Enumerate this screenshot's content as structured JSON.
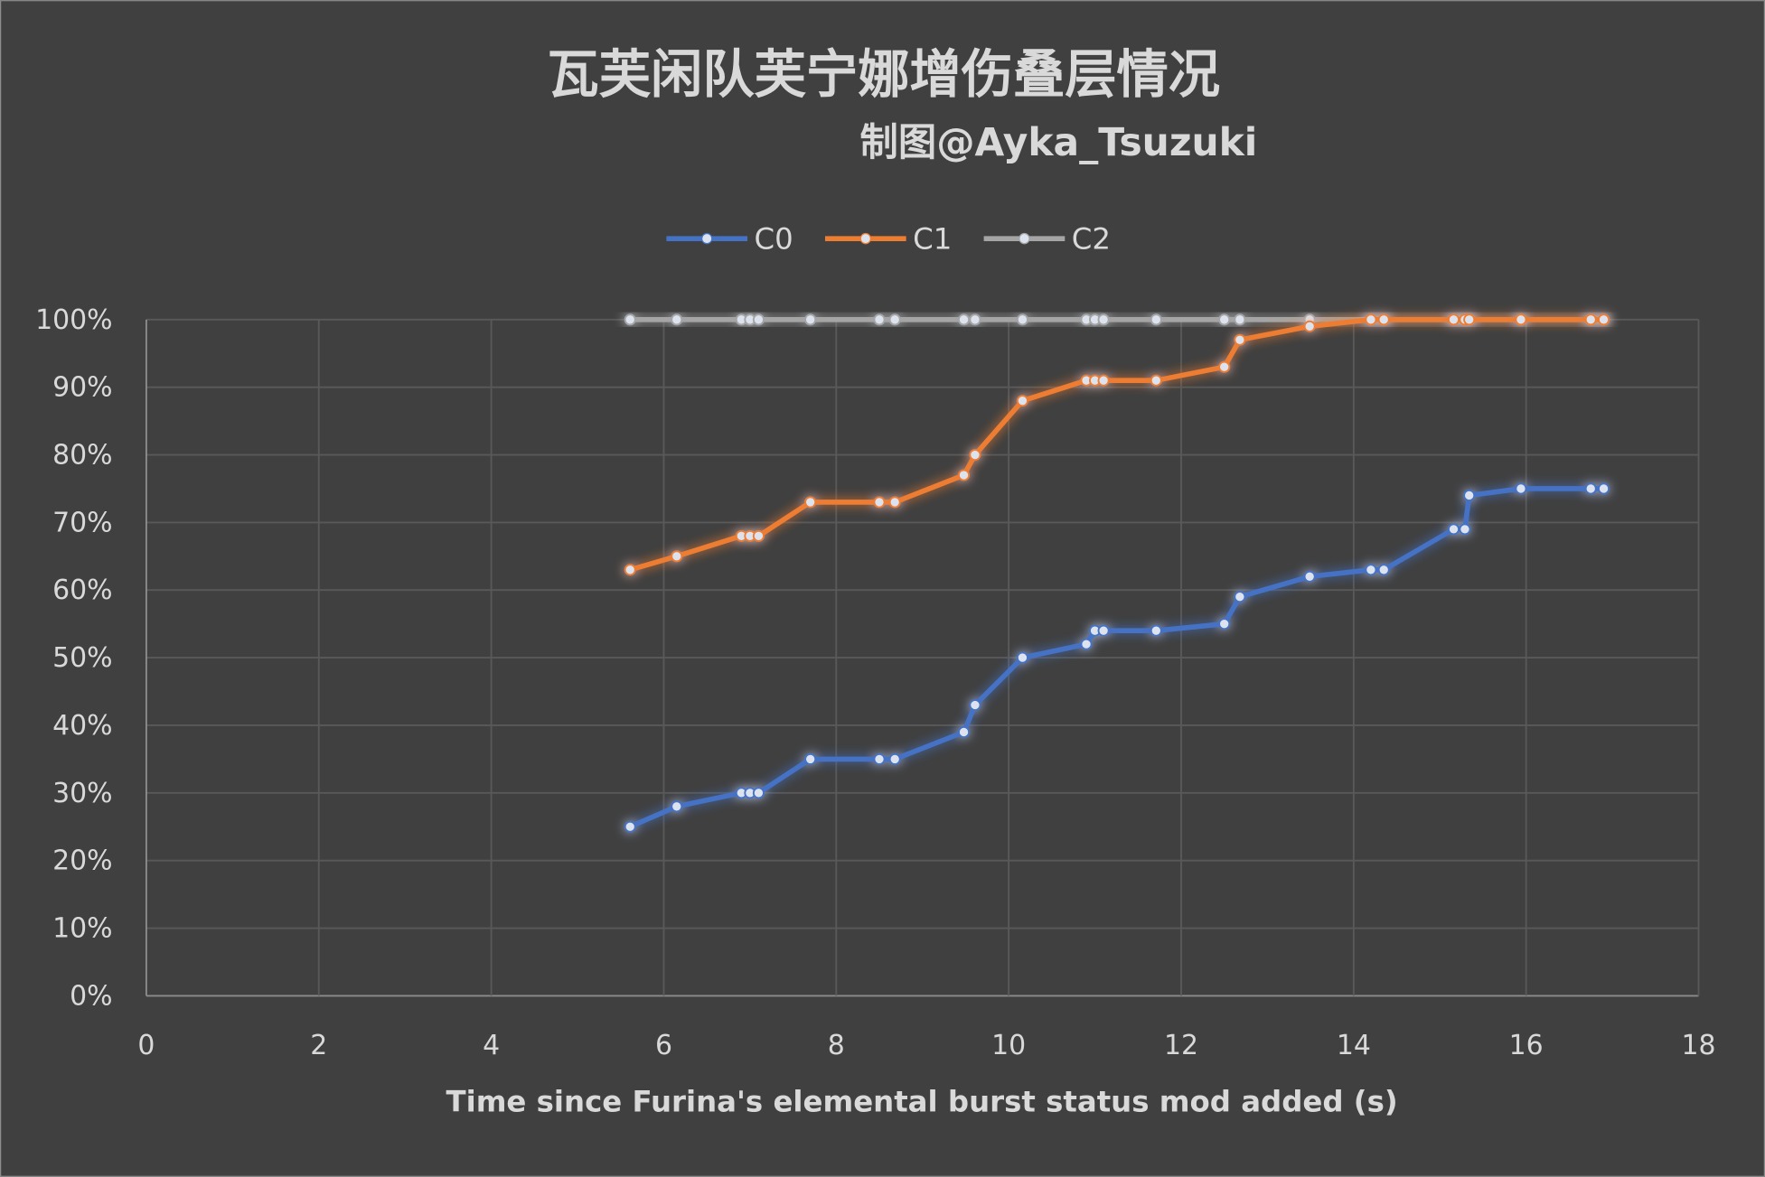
{
  "chart_data": {
    "type": "line",
    "title": "瓦芙闲队芙宁娜增伤叠层情况",
    "subtitle": "制图@Ayka_Tsuzuki",
    "xlabel": "Time since Furina's elemental burst status mod added (s)",
    "ylabel": "",
    "xlim": [
      0,
      18
    ],
    "ylim": [
      0,
      100
    ],
    "x_ticks": [
      "0",
      "2",
      "4",
      "6",
      "8",
      "10",
      "12",
      "14",
      "16",
      "18"
    ],
    "y_ticks": [
      "0%",
      "10%",
      "20%",
      "30%",
      "40%",
      "50%",
      "60%",
      "70%",
      "80%",
      "90%",
      "100%"
    ],
    "grid": true,
    "legend_position": "top",
    "x": [
      5.61,
      6.15,
      6.9,
      7.0,
      7.1,
      7.7,
      8.5,
      8.68,
      9.48,
      9.61,
      10.16,
      10.9,
      11.0,
      11.1,
      11.71,
      12.5,
      12.68,
      13.49,
      14.2,
      14.35,
      15.16,
      15.29,
      15.34,
      15.94,
      16.75,
      16.9
    ],
    "series": [
      {
        "name": "C0",
        "color": "#4472c4",
        "values": [
          25,
          28,
          30,
          30,
          30,
          35,
          35,
          35,
          39,
          43,
          50,
          52,
          54,
          54,
          54,
          55,
          59,
          62,
          63,
          63,
          69,
          69,
          74,
          75,
          75,
          75
        ]
      },
      {
        "name": "C1",
        "color": "#ed7d31",
        "values": [
          63,
          65,
          68,
          68,
          68,
          73,
          73,
          73,
          77,
          80,
          88,
          91,
          91,
          91,
          91,
          93,
          97,
          99,
          100,
          100,
          100,
          100,
          100,
          100,
          100,
          100
        ]
      },
      {
        "name": "C2",
        "color": "#a5a5a5",
        "values": [
          100,
          100,
          100,
          100,
          100,
          100,
          100,
          100,
          100,
          100,
          100,
          100,
          100,
          100,
          100,
          100,
          100,
          100,
          100,
          100,
          100,
          100,
          100,
          100,
          100,
          100
        ]
      }
    ]
  }
}
